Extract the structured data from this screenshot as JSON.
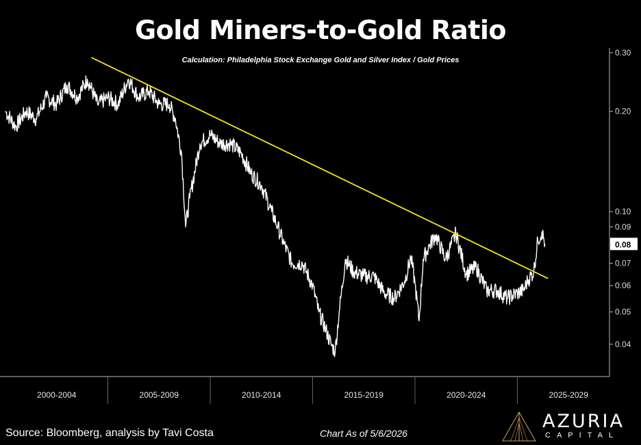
{
  "chart_data": {
    "type": "line",
    "title": "Gold Miners-to-Gold Ratio",
    "subtitle": "Calculation: Philadelphia Stock Exchange Gold and Silver Index / Gold Prices",
    "y_scale": "log",
    "ylim": [
      0.032,
      0.31
    ],
    "y_ticks": [
      "0.30",
      "0.20",
      "0.10",
      "0.09",
      "0.07",
      "0.06",
      "0.05",
      "0.04"
    ],
    "y_tick_values": [
      0.3,
      0.2,
      0.1,
      0.09,
      0.07,
      0.06,
      0.05,
      0.04
    ],
    "x_categories": [
      "2000-2004",
      "2005-2009",
      "2010-2014",
      "2015-2019",
      "2020-2024",
      "2025-2029"
    ],
    "last_value_label": "0.08",
    "series": [
      {
        "color": "#ffffff",
        "x": [
          2000.0,
          2000.5,
          2001.0,
          2001.5,
          2002.0,
          2002.5,
          2003.0,
          2003.5,
          2004.0,
          2004.5,
          2005.0,
          2005.5,
          2006.0,
          2006.5,
          2007.0,
          2007.5,
          2008.0,
          2008.3,
          2008.6,
          2008.8,
          2009.0,
          2009.5,
          2010.0,
          2010.5,
          2011.0,
          2011.5,
          2012.0,
          2012.5,
          2013.0,
          2013.3,
          2013.6,
          2014.0,
          2014.5,
          2015.0,
          2015.3,
          2015.6,
          2015.9,
          2016.1,
          2016.3,
          2016.6,
          2017.0,
          2017.5,
          2018.0,
          2018.5,
          2019.0,
          2019.5,
          2019.8,
          2020.0,
          2020.2,
          2020.4,
          2020.7,
          2021.0,
          2021.5,
          2022.0,
          2022.5,
          2023.0,
          2023.5,
          2024.0,
          2024.5,
          2025.0,
          2025.3,
          2025.5,
          2025.8,
          2026.0,
          2026.2,
          2026.35
        ],
        "values": [
          0.2,
          0.18,
          0.2,
          0.19,
          0.22,
          0.21,
          0.24,
          0.22,
          0.25,
          0.21,
          0.22,
          0.21,
          0.25,
          0.22,
          0.23,
          0.21,
          0.21,
          0.19,
          0.15,
          0.09,
          0.11,
          0.16,
          0.17,
          0.16,
          0.16,
          0.15,
          0.13,
          0.12,
          0.1,
          0.09,
          0.08,
          0.07,
          0.07,
          0.06,
          0.05,
          0.045,
          0.04,
          0.038,
          0.05,
          0.072,
          0.066,
          0.064,
          0.064,
          0.057,
          0.055,
          0.062,
          0.073,
          0.061,
          0.047,
          0.072,
          0.079,
          0.085,
          0.072,
          0.086,
          0.065,
          0.068,
          0.058,
          0.058,
          0.055,
          0.057,
          0.058,
          0.062,
          0.066,
          0.082,
          0.087,
          0.08
        ]
      },
      {
        "color": "#f5e61c",
        "x": [
          2004.2,
          2026.5
        ],
        "values": [
          0.29,
          0.063
        ]
      }
    ]
  },
  "footer": {
    "source": "Source: Bloomberg, analysis by Tavi Costa",
    "as_of": "Chart As of 5/6/2026"
  },
  "logo": {
    "name": "AZURIA",
    "sub": "CAPITAL"
  }
}
